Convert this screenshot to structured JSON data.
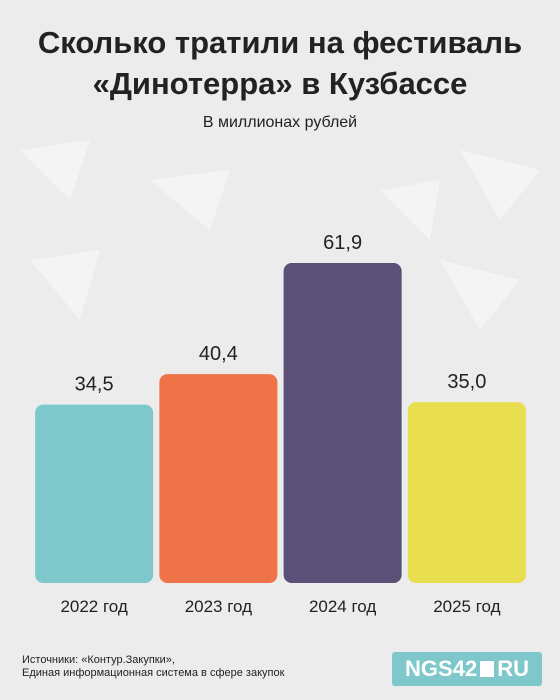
{
  "chart_data": {
    "type": "bar",
    "title": "Сколько тратили на фестиваль «Динотерра» в Кузбассе",
    "subtitle": "В миллионах рублей",
    "categories": [
      "2022 год",
      "2023 год",
      "2024 год",
      "2025 год"
    ],
    "values": [
      34.5,
      40.4,
      61.9,
      35.0
    ],
    "value_labels": [
      "34,5",
      "40,4",
      "61,9",
      "35,0"
    ],
    "colors": [
      "#7ec8cc",
      "#ee7349",
      "#5a5078",
      "#e9de4f"
    ],
    "ylim": [
      0,
      62
    ],
    "source": "Источники: «Контур.Закупки»,\nЕдиная информационная система в сфере закупок",
    "logo_parts": [
      "NGS42",
      "RU"
    ]
  }
}
